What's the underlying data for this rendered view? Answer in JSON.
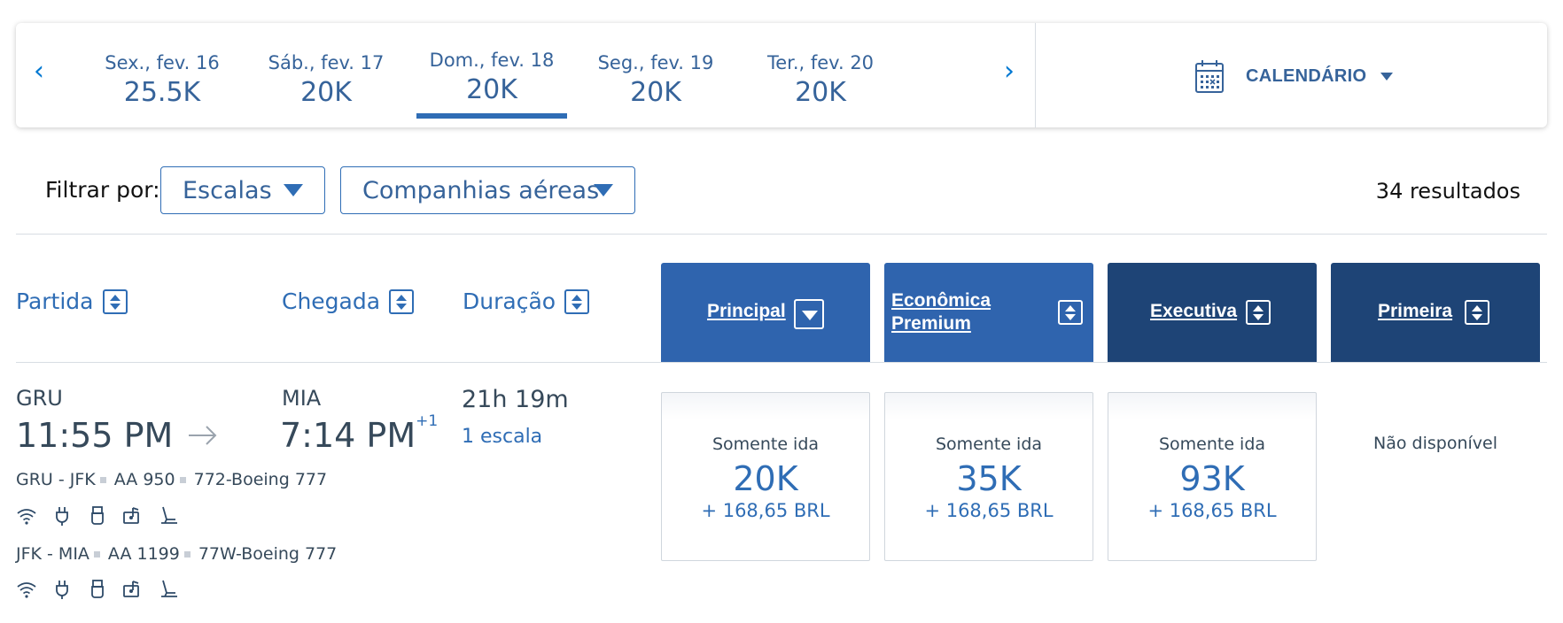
{
  "date_strip": {
    "prev_label": "‹",
    "next_label": "›",
    "dates": [
      {
        "day": "Sex., fev. 16",
        "price": "25.5K"
      },
      {
        "day": "Sáb., fev. 17",
        "price": "20K"
      },
      {
        "day": "Dom., fev. 18",
        "price": "20K",
        "active": true
      },
      {
        "day": "Seg., fev. 19",
        "price": "20K"
      },
      {
        "day": "Ter., fev. 20",
        "price": "20K"
      }
    ],
    "calendar_label": "CALENDÁRIO"
  },
  "filters": {
    "label": "Filtrar por:",
    "stops_dropdown": "Escalas",
    "airlines_dropdown": "Companhias aéreas",
    "results_count": "34 resultados"
  },
  "columns": {
    "departure": "Partida",
    "arrival": "Chegada",
    "duration": "Duração",
    "cabins": [
      {
        "name": "Principal",
        "color": "#2f64ae"
      },
      {
        "name_line1": "Econômica",
        "name_line2": "Premium",
        "color": "#2f64ae"
      },
      {
        "name": "Executiva",
        "color": "#1e4476"
      },
      {
        "name": "Primeira",
        "color": "#1e4476"
      }
    ]
  },
  "flight": {
    "origin": "GRU",
    "depart_time": "11:55 PM",
    "destination": "MIA",
    "arrive_time": "7:14 PM",
    "day_offset": "+1",
    "duration": "21h 19m",
    "stops": "1 escala",
    "segments": [
      {
        "route": "GRU - JFK",
        "flight_no": "AA 950",
        "aircraft": "772-Boeing 777"
      },
      {
        "route": "JFK - MIA",
        "flight_no": "AA 1199",
        "aircraft": "77W-Boeing 777"
      }
    ],
    "amenities": [
      "wifi-icon",
      "power-outlet-icon",
      "usb-icon",
      "entertainment-icon",
      "seat-icon"
    ],
    "fares": [
      {
        "label": "Somente ida",
        "miles": "20K",
        "tax": "+ 168,65 BRL"
      },
      {
        "label": "Somente ida",
        "miles": "35K",
        "tax": "+ 168,65 BRL"
      },
      {
        "label": "Somente ida",
        "miles": "93K",
        "tax": "+ 168,65 BRL"
      }
    ],
    "first_unavailable": "Não disponível"
  },
  "colors": {
    "link_blue": "#2f6db5",
    "cabin_main": "#2f64ae",
    "cabin_premium": "#1e4476",
    "warning": "#c5361c"
  }
}
